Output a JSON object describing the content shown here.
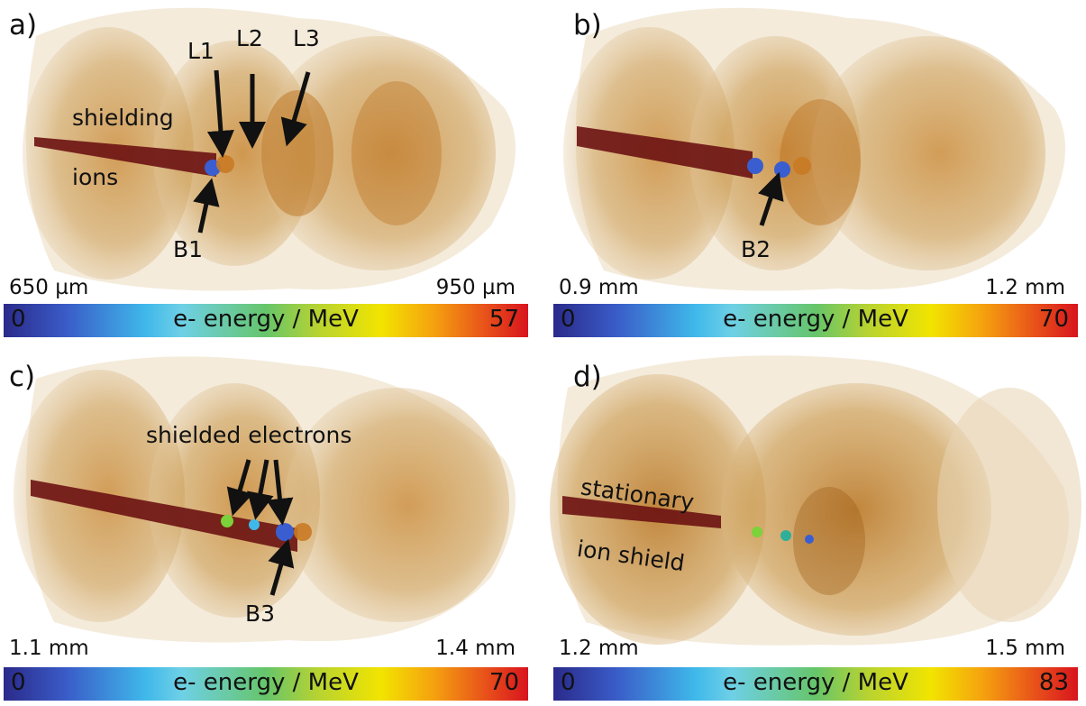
{
  "colors": {
    "plasma": "#b8741a",
    "ions": "#6b1212",
    "colorbar": [
      "#2a2a8a",
      "#3fb8ea",
      "#66c56a",
      "#f2e400",
      "#f5a10f",
      "#d8141e"
    ]
  },
  "panels": [
    {
      "label": "a)",
      "scale_left": "650 µm",
      "scale_right": "950 µm",
      "colorbar": {
        "min": "0",
        "title": "e- energy / MeV",
        "max": "57"
      },
      "annotations": {
        "l1": "L1",
        "l2": "L2",
        "l3": "L3",
        "shielding": "shielding",
        "ions": "ions",
        "b1": "B1"
      }
    },
    {
      "label": "b)",
      "scale_left": "0.9 mm",
      "scale_right": "1.2 mm",
      "colorbar": {
        "min": "0",
        "title": "e- energy / MeV",
        "max": "70"
      },
      "annotations": {
        "b2": "B2"
      }
    },
    {
      "label": "c)",
      "scale_left": "1.1 mm",
      "scale_right": "1.4 mm",
      "colorbar": {
        "min": "0",
        "title": "e- energy / MeV",
        "max": "70"
      },
      "annotations": {
        "shielded_electrons": "shielded electrons",
        "b3": "B3"
      }
    },
    {
      "label": "d)",
      "scale_left": "1.2 mm",
      "scale_right": "1.5 mm",
      "colorbar": {
        "min": "0",
        "title": "e- energy / MeV",
        "max": "83"
      },
      "annotations": {
        "stationary": "stationary",
        "ion_shield": "ion shield"
      }
    }
  ]
}
